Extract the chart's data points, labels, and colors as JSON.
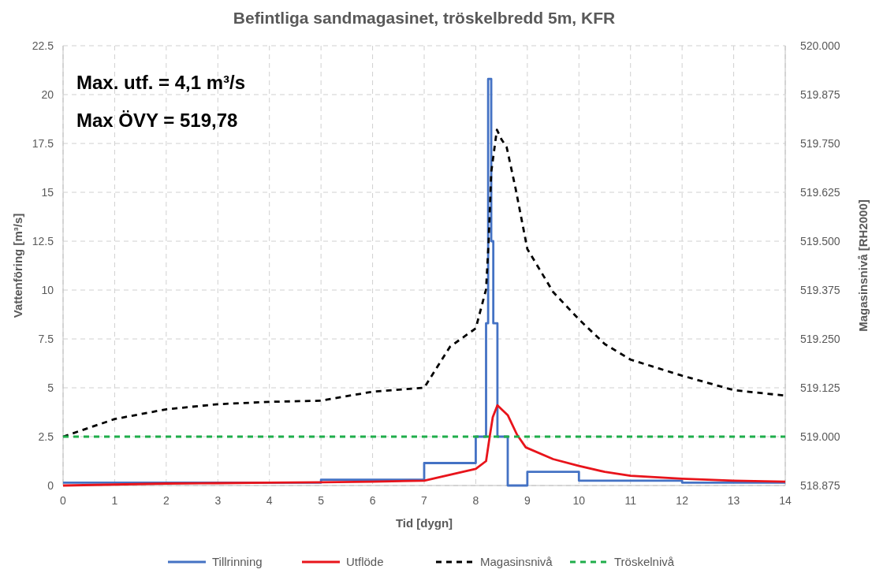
{
  "chart_data": {
    "type": "line",
    "title": "Befintliga sandmagasinet, tröskelbredd 5m, KFR",
    "xlabel": "Tid [dygn]",
    "ylabel": "Vattenföring [m³/s]",
    "y2label": "Magasinsnivå [RH2000]",
    "annotations": [
      "Max. utf. = 4,1 m³/s",
      "Max ÖVY = 519,78"
    ],
    "xlim": [
      0,
      14
    ],
    "xticks": [
      0,
      1,
      2,
      3,
      4,
      5,
      6,
      7,
      8,
      9,
      10,
      11,
      12,
      13,
      14
    ],
    "ylim": [
      0,
      22.5
    ],
    "yticks": [
      0,
      2.5,
      5,
      7.5,
      10,
      12.5,
      15,
      17.5,
      20,
      22.5
    ],
    "y2lim": [
      518.875,
      520
    ],
    "y2ticks": [
      {
        "value": 518.875,
        "label": "518.875"
      },
      {
        "value": 519,
        "label": "519.000"
      },
      {
        "value": 519.125,
        "label": "519.125"
      },
      {
        "value": 519.25,
        "label": "519.250"
      },
      {
        "value": 519.375,
        "label": "519.375"
      },
      {
        "value": 519.5,
        "label": "519.500"
      },
      {
        "value": 519.625,
        "label": "519.625"
      },
      {
        "value": 519.75,
        "label": "519.750"
      },
      {
        "value": 519.875,
        "label": "519.875"
      },
      {
        "value": 520,
        "label": "520.000"
      }
    ],
    "grid": true,
    "legend": "bottom",
    "series": [
      {
        "name": "Tillrinning",
        "type": "step",
        "color": "#4472c4",
        "line_style": "solid",
        "x": [
          0,
          5,
          7,
          8,
          8.2,
          8.24,
          8.3,
          8.34,
          8.42,
          8.62,
          9,
          10,
          12,
          14
        ],
        "values": [
          0.15,
          0.3,
          1.15,
          2.5,
          8.3,
          20.8,
          12.5,
          8.3,
          2.5,
          0,
          0.7,
          0.25,
          0.15,
          0.15
        ]
      },
      {
        "name": "Utflöde",
        "color": "#e8141b",
        "line_style": "solid",
        "x": [
          0,
          1,
          2,
          3,
          4,
          5,
          6,
          7,
          7.5,
          8,
          8.2,
          8.27,
          8.33,
          8.42,
          8.62,
          8.8,
          8.97,
          9.5,
          10,
          10.5,
          11,
          12,
          13,
          14
        ],
        "values": [
          0,
          0.05,
          0.1,
          0.12,
          0.15,
          0.17,
          0.2,
          0.25,
          0.55,
          0.85,
          1.25,
          2.5,
          3.5,
          4.1,
          3.6,
          2.6,
          1.95,
          1.35,
          1.0,
          0.7,
          0.5,
          0.35,
          0.25,
          0.2
        ]
      },
      {
        "name": "Magasinsnivå",
        "axis": "y2",
        "color": "#000000",
        "line_style": "dashed",
        "x": [
          0,
          1,
          2,
          3,
          4,
          5,
          6,
          7,
          7.5,
          8,
          8.2,
          8.25,
          8.3,
          8.41,
          8.5,
          8.6,
          8.77,
          9,
          9.5,
          10,
          10.5,
          11,
          12,
          13,
          14
        ],
        "values": [
          519.0,
          519.045,
          519.07,
          519.083,
          519.089,
          519.092,
          519.115,
          519.125,
          519.23,
          519.277,
          519.377,
          519.5,
          519.677,
          519.785,
          519.76,
          519.74,
          519.636,
          519.48,
          519.37,
          519.3,
          519.237,
          519.197,
          519.156,
          519.119,
          519.105
        ]
      },
      {
        "name": "Tröskelnivå",
        "axis": "y2",
        "color": "#1fae4b",
        "line_style": "dashed",
        "x": [
          0,
          14
        ],
        "values": [
          519.0,
          519.0
        ]
      }
    ]
  }
}
